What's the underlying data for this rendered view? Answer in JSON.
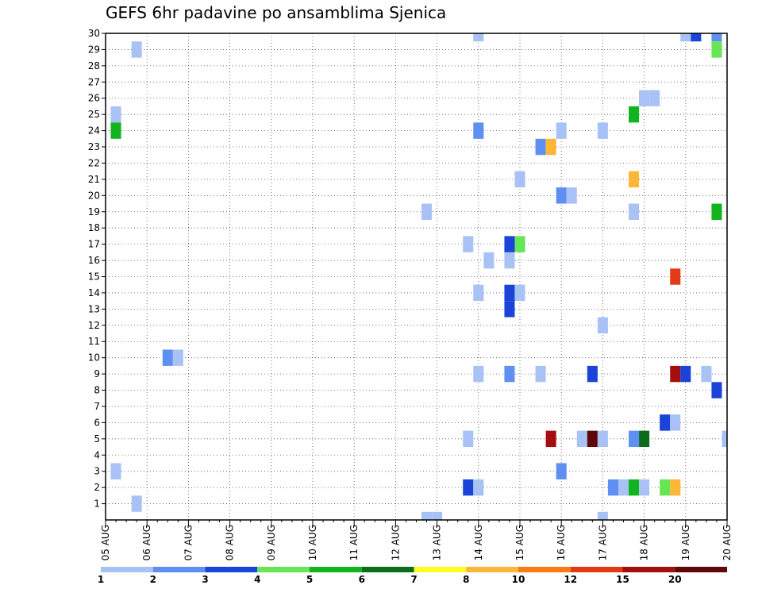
{
  "chart_data": {
    "type": "heatmap",
    "title": "GEFS 6hr padavine po ansamblima Sjenica",
    "xlabel": "",
    "ylabel": "",
    "x_tick_labels": [
      "05 AUG",
      "06 AUG",
      "07 AUG",
      "08 AUG",
      "09 AUG",
      "10 AUG",
      "11 AUG",
      "12 AUG",
      "13 AUG",
      "14 AUG",
      "15 AUG",
      "16 AUG",
      "17 AUG",
      "18 AUG",
      "19 AUG",
      "20 AUG"
    ],
    "xlim": [
      "05 AUG",
      "20 AUG"
    ],
    "y_tick_labels": [
      "1",
      "2",
      "3",
      "4",
      "5",
      "6",
      "7",
      "8",
      "9",
      "10",
      "11",
      "12",
      "13",
      "14",
      "15",
      "16",
      "17",
      "18",
      "19",
      "20",
      "21",
      "22",
      "23",
      "24",
      "25",
      "26",
      "27",
      "28",
      "29",
      "30"
    ],
    "ylim": [
      0,
      30
    ],
    "grid": true,
    "x_step": "6hr",
    "colorbar": {
      "labels": [
        "1",
        "2",
        "3",
        "4",
        "5",
        "6",
        "7",
        "8",
        "10",
        "12",
        "15",
        "20"
      ],
      "colors": [
        "#a9c2f5",
        "#5f8ff0",
        "#1a43d9",
        "#67e655",
        "#11b41f",
        "#0b6d1a",
        "#ffff22",
        "#fcb738",
        "#f97b12",
        "#e33a16",
        "#a40f0e",
        "#5e0707"
      ]
    },
    "cells": [
      {
        "date": "05 AUG",
        "hour": 6,
        "member": 3,
        "color": "#a9c2f5"
      },
      {
        "date": "05 AUG",
        "hour": 6,
        "member": 25,
        "color": "#a9c2f5"
      },
      {
        "date": "05 AUG",
        "hour": 6,
        "member": 24,
        "color": "#11b41f"
      },
      {
        "date": "05 AUG",
        "hour": 18,
        "member": 29,
        "color": "#a9c2f5"
      },
      {
        "date": "05 AUG",
        "hour": 18,
        "member": 1,
        "color": "#a9c2f5"
      },
      {
        "date": "06 AUG",
        "hour": 12,
        "member": 10,
        "color": "#5f8ff0"
      },
      {
        "date": "06 AUG",
        "hour": 18,
        "member": 10,
        "color": "#a9c2f5"
      },
      {
        "date": "12 AUG",
        "hour": 18,
        "member": 19,
        "color": "#a9c2f5"
      },
      {
        "date": "12 AUG",
        "hour": 18,
        "member": 0,
        "color": "#a9c2f5"
      },
      {
        "date": "13 AUG",
        "hour": 0,
        "member": 0,
        "color": "#a9c2f5"
      },
      {
        "date": "13 AUG",
        "hour": 18,
        "member": 17,
        "color": "#a9c2f5"
      },
      {
        "date": "13 AUG",
        "hour": 18,
        "member": 5,
        "color": "#a9c2f5"
      },
      {
        "date": "13 AUG",
        "hour": 18,
        "member": 2,
        "color": "#1a43d9"
      },
      {
        "date": "14 AUG",
        "hour": 0,
        "member": 30,
        "color": "#a9c2f5"
      },
      {
        "date": "14 AUG",
        "hour": 0,
        "member": 24,
        "color": "#5f8ff0"
      },
      {
        "date": "14 AUG",
        "hour": 0,
        "member": 14,
        "color": "#a9c2f5"
      },
      {
        "date": "14 AUG",
        "hour": 0,
        "member": 9,
        "color": "#a9c2f5"
      },
      {
        "date": "14 AUG",
        "hour": 0,
        "member": 2,
        "color": "#a9c2f5"
      },
      {
        "date": "14 AUG",
        "hour": 6,
        "member": 16,
        "color": "#a9c2f5"
      },
      {
        "date": "14 AUG",
        "hour": 18,
        "member": 17,
        "color": "#1a43d9"
      },
      {
        "date": "14 AUG",
        "hour": 18,
        "member": 16,
        "color": "#a9c2f5"
      },
      {
        "date": "14 AUG",
        "hour": 18,
        "member": 14,
        "color": "#1a43d9"
      },
      {
        "date": "14 AUG",
        "hour": 18,
        "member": 13,
        "color": "#1a43d9"
      },
      {
        "date": "14 AUG",
        "hour": 18,
        "member": 9,
        "color": "#5f8ff0"
      },
      {
        "date": "15 AUG",
        "hour": 0,
        "member": 21,
        "color": "#a9c2f5"
      },
      {
        "date": "15 AUG",
        "hour": 0,
        "member": 17,
        "color": "#67e655"
      },
      {
        "date": "15 AUG",
        "hour": 0,
        "member": 14,
        "color": "#a9c2f5"
      },
      {
        "date": "15 AUG",
        "hour": 12,
        "member": 23,
        "color": "#5f8ff0"
      },
      {
        "date": "15 AUG",
        "hour": 12,
        "member": 9,
        "color": "#a9c2f5"
      },
      {
        "date": "15 AUG",
        "hour": 18,
        "member": 23,
        "color": "#fcb738"
      },
      {
        "date": "15 AUG",
        "hour": 18,
        "member": 5,
        "color": "#a40f0e"
      },
      {
        "date": "16 AUG",
        "hour": 0,
        "member": 24,
        "color": "#a9c2f5"
      },
      {
        "date": "16 AUG",
        "hour": 0,
        "member": 20,
        "color": "#5f8ff0"
      },
      {
        "date": "16 AUG",
        "hour": 0,
        "member": 3,
        "color": "#5f8ff0"
      },
      {
        "date": "16 AUG",
        "hour": 6,
        "member": 20,
        "color": "#a9c2f5"
      },
      {
        "date": "16 AUG",
        "hour": 12,
        "member": 5,
        "color": "#a9c2f5"
      },
      {
        "date": "16 AUG",
        "hour": 18,
        "member": 9,
        "color": "#1a43d9"
      },
      {
        "date": "16 AUG",
        "hour": 18,
        "member": 5,
        "color": "#5e0707"
      },
      {
        "date": "17 AUG",
        "hour": 0,
        "member": 24,
        "color": "#a9c2f5"
      },
      {
        "date": "17 AUG",
        "hour": 0,
        "member": 12,
        "color": "#a9c2f5"
      },
      {
        "date": "17 AUG",
        "hour": 0,
        "member": 5,
        "color": "#a9c2f5"
      },
      {
        "date": "17 AUG",
        "hour": 0,
        "member": 0,
        "color": "#a9c2f5"
      },
      {
        "date": "17 AUG",
        "hour": 6,
        "member": 2,
        "color": "#5f8ff0"
      },
      {
        "date": "17 AUG",
        "hour": 12,
        "member": 2,
        "color": "#a9c2f5"
      },
      {
        "date": "17 AUG",
        "hour": 18,
        "member": 25,
        "color": "#11b41f"
      },
      {
        "date": "17 AUG",
        "hour": 18,
        "member": 21,
        "color": "#fcb738"
      },
      {
        "date": "17 AUG",
        "hour": 18,
        "member": 19,
        "color": "#a9c2f5"
      },
      {
        "date": "17 AUG",
        "hour": 18,
        "member": 5,
        "color": "#5f8ff0"
      },
      {
        "date": "17 AUG",
        "hour": 18,
        "member": 2,
        "color": "#11b41f"
      },
      {
        "date": "18 AUG",
        "hour": 0,
        "member": 26,
        "color": "#a9c2f5"
      },
      {
        "date": "18 AUG",
        "hour": 0,
        "member": 5,
        "color": "#0b6d1a"
      },
      {
        "date": "18 AUG",
        "hour": 0,
        "member": 2,
        "color": "#a9c2f5"
      },
      {
        "date": "18 AUG",
        "hour": 6,
        "member": 26,
        "color": "#a9c2f5"
      },
      {
        "date": "18 AUG",
        "hour": 12,
        "member": 6,
        "color": "#1a43d9"
      },
      {
        "date": "18 AUG",
        "hour": 12,
        "member": 2,
        "color": "#67e655"
      },
      {
        "date": "18 AUG",
        "hour": 18,
        "member": 15,
        "color": "#e33a16"
      },
      {
        "date": "18 AUG",
        "hour": 18,
        "member": 9,
        "color": "#a40f0e"
      },
      {
        "date": "18 AUG",
        "hour": 18,
        "member": 6,
        "color": "#a9c2f5"
      },
      {
        "date": "18 AUG",
        "hour": 18,
        "member": 2,
        "color": "#fcb738"
      },
      {
        "date": "19 AUG",
        "hour": 0,
        "member": 30,
        "color": "#a9c2f5"
      },
      {
        "date": "19 AUG",
        "hour": 0,
        "member": 9,
        "color": "#1a43d9"
      },
      {
        "date": "19 AUG",
        "hour": 6,
        "member": 30,
        "color": "#1a43d9"
      },
      {
        "date": "19 AUG",
        "hour": 12,
        "member": 9,
        "color": "#a9c2f5"
      },
      {
        "date": "19 AUG",
        "hour": 18,
        "member": 30,
        "color": "#5f8ff0"
      },
      {
        "date": "19 AUG",
        "hour": 18,
        "member": 29,
        "color": "#67e655"
      },
      {
        "date": "19 AUG",
        "hour": 18,
        "member": 19,
        "color": "#11b41f"
      },
      {
        "date": "19 AUG",
        "hour": 18,
        "member": 8,
        "color": "#1a43d9"
      },
      {
        "date": "20 AUG",
        "hour": 0,
        "member": 5,
        "color": "#a9c2f5"
      }
    ]
  }
}
